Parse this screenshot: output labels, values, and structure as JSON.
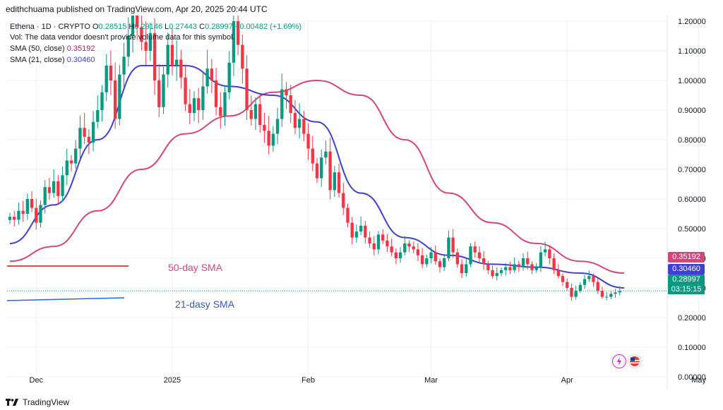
{
  "header": {
    "publisher": "edithchuama published on TradingView.com, Apr 20, 2025 20:44 UTC"
  },
  "legend": {
    "symbol": "Ethena · 1D · CRYPTO",
    "o_label": "O",
    "o_value": "0.28515",
    "h_label": "H",
    "h_value": "0.29146",
    "l_label": "L",
    "l_value": "0.27443",
    "c_label": "C",
    "c_value": "0.28997",
    "change": "+0.00482 (+1.69%)",
    "vol_text": "Vol: The data vendor doesn't provide volume data for this symbol.",
    "sma50_label": "SMA (50, close)",
    "sma50_value": "0.35192",
    "sma21_label": "SMA (21, close)",
    "sma21_value": "0.30460"
  },
  "annotations": {
    "sma50_text": "50-day SMA",
    "sma21_text": "21-dasy SMA"
  },
  "price_tags": {
    "sma50": "0.35192",
    "sma21": "0.30460",
    "last": "0.28997",
    "countdown": "03:15:15"
  },
  "footer": {
    "brand": "TradingView"
  },
  "colors": {
    "up": "#089981",
    "down": "#f23645",
    "sma50": "#d6457a",
    "sma21": "#3f3fd1",
    "grid": "#eef0f3"
  },
  "icons": [
    "lightning-icon",
    "flag-icon",
    "tradingview-logo-icon"
  ],
  "chart_data": {
    "type": "candlestick",
    "title": "Ethena · 1D · CRYPTO",
    "y_ticks": [
      "1.20000",
      "1.10000",
      "1.00000",
      "0.90000",
      "0.80000",
      "0.70000",
      "0.60000",
      "0.50000",
      "0.40000",
      "0.30000",
      "0.20000",
      "0.10000",
      "0.00000"
    ],
    "ylim": [
      0.0,
      1.2
    ],
    "x_ticks": [
      "Dec",
      "2025",
      "Feb",
      "Mar",
      "Apr",
      "May"
    ],
    "x_tick_days": [
      6,
      37,
      68,
      96,
      127,
      157
    ],
    "first_day": 0,
    "last_day": 140,
    "grid": true,
    "closes": [
      0.54,
      0.53,
      0.56,
      0.55,
      0.6,
      0.57,
      0.52,
      0.58,
      0.64,
      0.62,
      0.66,
      0.61,
      0.68,
      0.73,
      0.72,
      0.77,
      0.84,
      0.81,
      0.79,
      0.86,
      0.9,
      0.96,
      1.05,
      1.0,
      0.87,
      1.02,
      1.08,
      1.15,
      1.22,
      1.18,
      1.13,
      1.1,
      1.16,
      1.0,
      0.91,
      1.02,
      1.12,
      1.05,
      1.07,
      1.01,
      0.92,
      0.89,
      0.94,
      0.9,
      0.98,
      1.04,
      1.0,
      0.91,
      0.88,
      0.96,
      1.06,
      1.2,
      1.12,
      1.04,
      0.9,
      0.87,
      0.92,
      0.85,
      0.83,
      0.78,
      0.82,
      0.87,
      0.97,
      0.95,
      0.89,
      0.84,
      0.87,
      0.82,
      0.77,
      0.72,
      0.67,
      0.74,
      0.76,
      0.63,
      0.69,
      0.62,
      0.57,
      0.52,
      0.47,
      0.49,
      0.51,
      0.47,
      0.45,
      0.43,
      0.48,
      0.46,
      0.44,
      0.42,
      0.4,
      0.42,
      0.45,
      0.44,
      0.43,
      0.41,
      0.38,
      0.4,
      0.42,
      0.39,
      0.37,
      0.4,
      0.47,
      0.42,
      0.38,
      0.35,
      0.38,
      0.44,
      0.42,
      0.4,
      0.38,
      0.36,
      0.34,
      0.35,
      0.36,
      0.37,
      0.36,
      0.38,
      0.37,
      0.4,
      0.38,
      0.36,
      0.37,
      0.42,
      0.43,
      0.4,
      0.36,
      0.34,
      0.32,
      0.3,
      0.27,
      0.29,
      0.31,
      0.33,
      0.34,
      0.32,
      0.29,
      0.27,
      0.27,
      0.28,
      0.285,
      0.29
    ],
    "series": [
      {
        "name": "SMA (50, close)",
        "color": "#d6457a",
        "x": [
          0,
          10,
          20,
          30,
          40,
          50,
          60,
          70,
          80,
          90,
          100,
          110,
          120,
          130,
          140
        ],
        "y": [
          0.39,
          0.44,
          0.56,
          0.7,
          0.82,
          0.88,
          0.96,
          1.0,
          0.95,
          0.8,
          0.62,
          0.52,
          0.45,
          0.39,
          0.35
        ]
      },
      {
        "name": "SMA (21, close)",
        "color": "#3f3fd1",
        "x": [
          0,
          10,
          20,
          30,
          40,
          50,
          60,
          70,
          80,
          90,
          100,
          110,
          120,
          130,
          140
        ],
        "y": [
          0.45,
          0.58,
          0.8,
          1.05,
          1.05,
          0.98,
          0.95,
          0.86,
          0.62,
          0.47,
          0.41,
          0.38,
          0.37,
          0.35,
          0.3
        ]
      }
    ],
    "last_price": 0.28997
  }
}
